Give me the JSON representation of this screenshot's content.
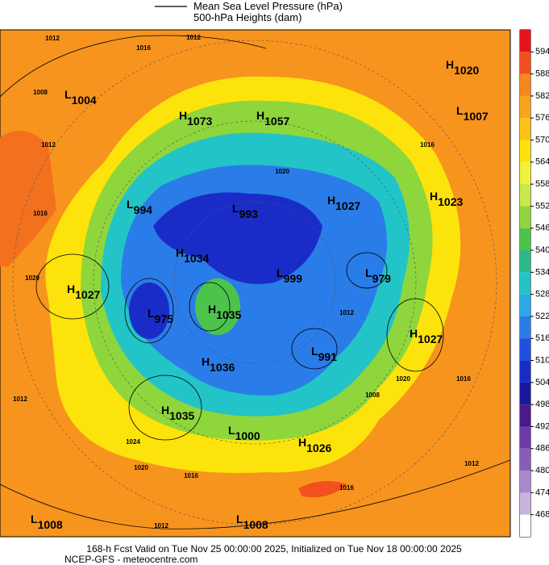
{
  "legend": {
    "line1": "Mean Sea Level Pressure (hPa)",
    "line2": "500-hPa Heights (dam)"
  },
  "colorbar": {
    "ticks": [
      594,
      588,
      582,
      576,
      570,
      564,
      558,
      552,
      546,
      540,
      534,
      528,
      522,
      516,
      510,
      504,
      498,
      492,
      486,
      480,
      474,
      468
    ],
    "colors": [
      "#e8141c",
      "#f2501e",
      "#f7861d",
      "#f9a21a",
      "#fbc314",
      "#fde30c",
      "#f2f23a",
      "#c8e84a",
      "#8ed63c",
      "#4cc44c",
      "#2cb88c",
      "#22c4c8",
      "#2aa8e8",
      "#2a7ce8",
      "#2050e0",
      "#1a2cc8",
      "#18189c",
      "#4a1a8c",
      "#6e3aa8",
      "#8a5cba",
      "#a888cc",
      "#c8b2de",
      "#ffffff"
    ]
  },
  "centers": [
    {
      "letter": "L",
      "value": "1004"
    },
    {
      "letter": "H",
      "value": "1073"
    },
    {
      "letter": "H",
      "value": "1057"
    },
    {
      "letter": "H",
      "value": "1020"
    },
    {
      "letter": "L",
      "value": "1007"
    },
    {
      "letter": "L",
      "value": "994"
    },
    {
      "letter": "L",
      "value": "993"
    },
    {
      "letter": "H",
      "value": "1027"
    },
    {
      "letter": "H",
      "value": "1023"
    },
    {
      "letter": "H",
      "value": "1034"
    },
    {
      "letter": "L",
      "value": "999"
    },
    {
      "letter": "L",
      "value": "979"
    },
    {
      "letter": "H",
      "value": "1027"
    },
    {
      "letter": "L",
      "value": "975"
    },
    {
      "letter": "H",
      "value": "1035"
    },
    {
      "letter": "H",
      "value": "1027"
    },
    {
      "letter": "L",
      "value": "991"
    },
    {
      "letter": "H",
      "value": "1036"
    },
    {
      "letter": "H",
      "value": "1035"
    },
    {
      "letter": "L",
      "value": "1000"
    },
    {
      "letter": "H",
      "value": "1026"
    },
    {
      "letter": "L",
      "value": "1008"
    },
    {
      "letter": "L",
      "value": "1008"
    }
  ],
  "contour_labels": [
    "1012",
    "1016",
    "1012",
    "1008",
    "1012",
    "1016",
    "1020",
    "1016",
    "1020",
    "1012",
    "1008",
    "1020",
    "1016",
    "1012",
    "1016",
    "1012",
    "1016",
    "1020",
    "1024",
    "1012"
  ],
  "footer": {
    "line1": "168-h Fcst Valid on Tue Nov 25 00:00:00 2025, Initialized on Tue Nov 18 00:00:00 2025",
    "line2": "NCEP-GFS - meteocentre.com"
  }
}
